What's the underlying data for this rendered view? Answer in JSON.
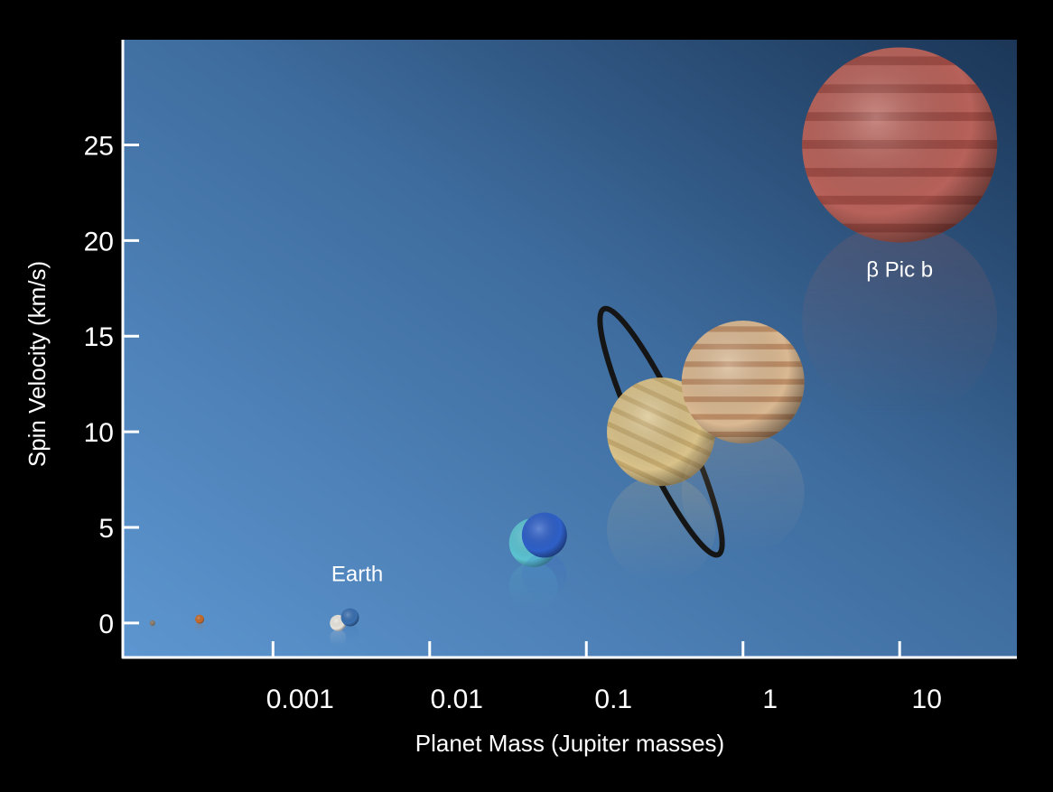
{
  "chart_data": {
    "type": "scatter",
    "title": "",
    "xlabel": "Planet Mass (Jupiter masses)",
    "ylabel": "Spin Velocity (km/s)",
    "x_scale": "log",
    "x_ticks": [
      0.001,
      0.01,
      0.1,
      1,
      10
    ],
    "x_tick_labels": [
      "0.001",
      "0.01",
      "0.1",
      "1",
      "10"
    ],
    "y_ticks": [
      0,
      5,
      10,
      15,
      20,
      25
    ],
    "y_tick_labels": [
      "0",
      "5",
      "10",
      "15",
      "20",
      "25"
    ],
    "xlim": [
      0.00011,
      56
    ],
    "ylim": [
      -1.8,
      30.5
    ],
    "grid": false,
    "legend": "none",
    "points": [
      {
        "name": "Mercury",
        "label": "",
        "x": 0.00017,
        "y": 0.0,
        "color": "#8a7a6a"
      },
      {
        "name": "Mars",
        "label": "",
        "x": 0.00034,
        "y": 0.2,
        "color": "#c46a2b"
      },
      {
        "name": "Venus",
        "label": "",
        "x": 0.0026,
        "y": 0.0,
        "color": "#e9e6df"
      },
      {
        "name": "Earth",
        "label": "Earth",
        "x": 0.0031,
        "y": 0.3,
        "color": "#3a6fb0"
      },
      {
        "name": "Uranus",
        "label": "",
        "x": 0.046,
        "y": 4.2,
        "color": "#5cc3d2"
      },
      {
        "name": "Neptune",
        "label": "",
        "x": 0.054,
        "y": 4.6,
        "color": "#2f60c8"
      },
      {
        "name": "Saturn",
        "label": "",
        "x": 0.3,
        "y": 10.0,
        "color": "#d9c28a"
      },
      {
        "name": "Jupiter",
        "label": "",
        "x": 1.0,
        "y": 12.6,
        "color": "#d9b892"
      },
      {
        "name": "beta Pic b",
        "label": "β Pic b",
        "x": 10.0,
        "y": 25.0,
        "color": "#b7625a"
      }
    ]
  }
}
